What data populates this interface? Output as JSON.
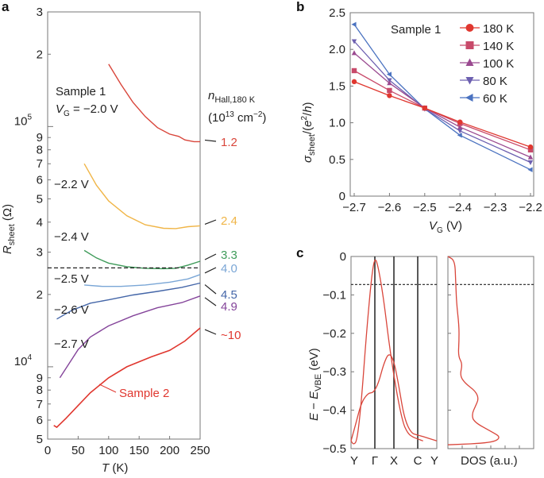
{
  "chart_data": [
    {
      "panel": "a",
      "type": "line",
      "xlabel": "T (K)",
      "ylabel": "R_sheet (Ω)",
      "yscale": "log",
      "xlim": [
        0,
        250
      ],
      "ylim": [
        5000,
        300000
      ],
      "x_ticks": [
        "0",
        "50",
        "100",
        "150",
        "200",
        "250"
      ],
      "y_major_ticks": [
        {
          "value": 10000,
          "label": "10^4"
        },
        {
          "value": 100000,
          "label": "10^5"
        }
      ],
      "y_minor_tick_labels": [
        {
          "value": 5000,
          "label": "5"
        },
        {
          "value": 6000,
          "label": "6"
        },
        {
          "value": 7000,
          "label": "7"
        },
        {
          "value": 8000,
          "label": "8"
        },
        {
          "value": 9000,
          "label": "9"
        },
        {
          "value": 20000,
          "label": "2"
        },
        {
          "value": 30000,
          "label": "3"
        },
        {
          "value": 40000,
          "label": "4"
        },
        {
          "value": 50000,
          "label": "5"
        },
        {
          "value": 60000,
          "label": "6"
        },
        {
          "value": 70000,
          "label": "7"
        },
        {
          "value": 80000,
          "label": "8"
        },
        {
          "value": 90000,
          "label": "9"
        },
        {
          "value": 200000,
          "label": "2"
        },
        {
          "value": 300000,
          "label": "3"
        }
      ],
      "reference_line": {
        "value": 25800,
        "style": "dashed"
      },
      "header_annotation": {
        "line1": "Sample 1",
        "line2": "V_G = −2.0 V"
      },
      "right_header": {
        "line1": "n_Hall,180 K",
        "line2": "(10^13 cm^−2)"
      },
      "series": [
        {
          "name": "−2.0 V",
          "label": "",
          "n_hall": "1.2",
          "color": "#d9463b",
          "points": [
            [
              100,
              182000
            ],
            [
              120,
              150000
            ],
            [
              140,
              126000
            ],
            [
              160,
              110000
            ],
            [
              180,
              99000
            ],
            [
              200,
              93000
            ],
            [
              215,
              91000
            ],
            [
              225,
              88000
            ],
            [
              240,
              86500
            ],
            [
              250,
              86500
            ]
          ]
        },
        {
          "name": "−2.2 V",
          "label": "−2.2 V",
          "n_hall": "2.4",
          "color": "#f0b547",
          "points": [
            [
              60,
              70000
            ],
            [
              80,
              57000
            ],
            [
              100,
              49000
            ],
            [
              130,
              42500
            ],
            [
              160,
              39000
            ],
            [
              190,
              37700
            ],
            [
              210,
              37600
            ],
            [
              230,
              38300
            ],
            [
              250,
              38600
            ]
          ]
        },
        {
          "name": "−2.4 V",
          "label": "−2.4 V",
          "n_hall": "3.3",
          "color": "#3f9b5a",
          "points": [
            [
              60,
              30500
            ],
            [
              80,
              28400
            ],
            [
              100,
              27000
            ],
            [
              130,
              26100
            ],
            [
              160,
              25700
            ],
            [
              190,
              25600
            ],
            [
              210,
              25700
            ],
            [
              230,
              26500
            ],
            [
              250,
              27500
            ]
          ]
        },
        {
          "name": "−2.5 V",
          "label": "−2.5 V",
          "n_hall": "4.0",
          "color": "#7aa6d6",
          "points": [
            [
              60,
              21900
            ],
            [
              90,
              21600
            ],
            [
              120,
              21600
            ],
            [
              160,
              21900
            ],
            [
              200,
              22500
            ],
            [
              230,
              23200
            ],
            [
              250,
              24200
            ]
          ]
        },
        {
          "name": "−2.6 V",
          "label": "−2.6 V",
          "n_hall": "4.5",
          "color": "#4466a8",
          "points": [
            [
              15,
              15800
            ],
            [
              40,
              17200
            ],
            [
              70,
              18400
            ],
            [
              100,
              19000
            ],
            [
              140,
              19900
            ],
            [
              180,
              20600
            ],
            [
              220,
              21400
            ],
            [
              250,
              22300
            ]
          ]
        },
        {
          "name": "−2.7 V",
          "label": "−2.7 V",
          "n_hall": "4.9",
          "color": "#84449a",
          "points": [
            [
              20,
              9000
            ],
            [
              35,
              10300
            ],
            [
              50,
              11800
            ],
            [
              70,
              13300
            ],
            [
              100,
              14800
            ],
            [
              140,
              16300
            ],
            [
              180,
              17600
            ],
            [
              220,
              18500
            ],
            [
              250,
              19700
            ]
          ]
        },
        {
          "name": "Sample 2",
          "label": "Sample 2",
          "n_hall": "~10",
          "color": "#e0372f",
          "points": [
            [
              10,
              5700
            ],
            [
              15,
              5600
            ],
            [
              30,
              6100
            ],
            [
              50,
              6900
            ],
            [
              70,
              7800
            ],
            [
              100,
              9000
            ],
            [
              130,
              10000
            ],
            [
              170,
              11000
            ],
            [
              200,
              11700
            ],
            [
              225,
              12800
            ],
            [
              250,
              14500
            ]
          ]
        }
      ]
    },
    {
      "panel": "b",
      "type": "line",
      "xlabel": "V_G (V)",
      "ylabel": "σ_sheet/(e^2/h)",
      "xlim": [
        -2.7,
        -2.2
      ],
      "ylim": [
        0,
        2.5
      ],
      "x": [
        -2.7,
        -2.6,
        -2.5,
        -2.4,
        -2.2
      ],
      "x_ticks": [
        "−2.7",
        "−2.6",
        "−2.5",
        "−2.4",
        "−2.3",
        "−2.2"
      ],
      "y_ticks": [
        "0",
        "0.5",
        "1.0",
        "1.5",
        "2.0",
        "2.5"
      ],
      "annotation": "Sample 1",
      "legend_position": "top-right",
      "series": [
        {
          "name": "180 K",
          "marker": "circle",
          "color": "#e0372f",
          "values": [
            1.56,
            1.37,
            1.2,
            1.01,
            0.67
          ]
        },
        {
          "name": "140 K",
          "marker": "square",
          "color": "#c84a6a",
          "values": [
            1.71,
            1.44,
            1.2,
            0.99,
            0.63
          ]
        },
        {
          "name": "100 K",
          "marker": "triangle-up",
          "color": "#9a4a90",
          "values": [
            1.95,
            1.54,
            1.2,
            0.94,
            0.53
          ]
        },
        {
          "name": "80 K",
          "marker": "triangle-down",
          "color": "#6c5fb0",
          "values": [
            2.11,
            1.58,
            1.19,
            0.89,
            0.46
          ]
        },
        {
          "name": "60 K",
          "marker": "triangle-left",
          "color": "#4a72c0",
          "values": [
            2.34,
            1.66,
            1.19,
            0.83,
            0.36
          ]
        }
      ]
    },
    {
      "panel": "c",
      "type": "line",
      "ylabel": "E − E_VBE (eV)",
      "ylim": [
        -0.5,
        0
      ],
      "y_ticks": [
        "0",
        "−0.1",
        "−0.2",
        "−0.3",
        "−0.4",
        "−0.5"
      ],
      "k_path_labels": [
        "Y",
        "Γ",
        "X",
        "C",
        "Y"
      ],
      "fermi_level": -0.073,
      "dos_xlabel": "DOS (a.u.)",
      "color": "#d9463b",
      "band1": [
        [
          0,
          -0.48
        ],
        [
          0.05,
          -0.44
        ],
        [
          0.12,
          -0.38
        ],
        [
          0.2,
          -0.355
        ],
        [
          0.26,
          -0.355
        ],
        [
          0.32,
          -0.33
        ],
        [
          0.38,
          -0.28
        ],
        [
          0.44,
          -0.25
        ],
        [
          0.5,
          -0.27
        ],
        [
          0.56,
          -0.34
        ],
        [
          0.62,
          -0.42
        ],
        [
          0.7,
          -0.46
        ],
        [
          0.78,
          -0.465
        ],
        [
          0.86,
          -0.47
        ],
        [
          1.0,
          -0.48
        ]
      ],
      "band2": [
        [
          0,
          -0.48
        ],
        [
          0.03,
          -0.49
        ],
        [
          0.07,
          -0.48
        ],
        [
          0.12,
          -0.38
        ],
        [
          0.18,
          -0.2
        ],
        [
          0.24,
          -0.05
        ],
        [
          0.28,
          0.0
        ],
        [
          0.32,
          -0.03
        ],
        [
          0.38,
          -0.11
        ],
        [
          0.44,
          -0.22
        ],
        [
          0.52,
          -0.34
        ],
        [
          0.6,
          -0.43
        ],
        [
          0.66,
          -0.46
        ],
        [
          0.72,
          -0.47
        ],
        [
          0.78,
          -0.475
        ],
        [
          0.84,
          -0.48
        ]
      ],
      "dos": [
        [
          0,
          0.0
        ],
        [
          0.08,
          -0.01
        ],
        [
          0.09,
          -0.06
        ],
        [
          0.1,
          -0.12
        ],
        [
          0.13,
          -0.18
        ],
        [
          0.13,
          -0.22
        ],
        [
          0.12,
          -0.26
        ],
        [
          0.17,
          -0.28
        ],
        [
          0.14,
          -0.31
        ],
        [
          0.2,
          -0.33
        ],
        [
          0.32,
          -0.35
        ],
        [
          0.36,
          -0.37
        ],
        [
          0.32,
          -0.39
        ],
        [
          0.28,
          -0.41
        ],
        [
          0.3,
          -0.43
        ],
        [
          0.5,
          -0.455
        ],
        [
          0.62,
          -0.47
        ],
        [
          0.52,
          -0.485
        ],
        [
          0.0,
          -0.49
        ]
      ]
    }
  ]
}
